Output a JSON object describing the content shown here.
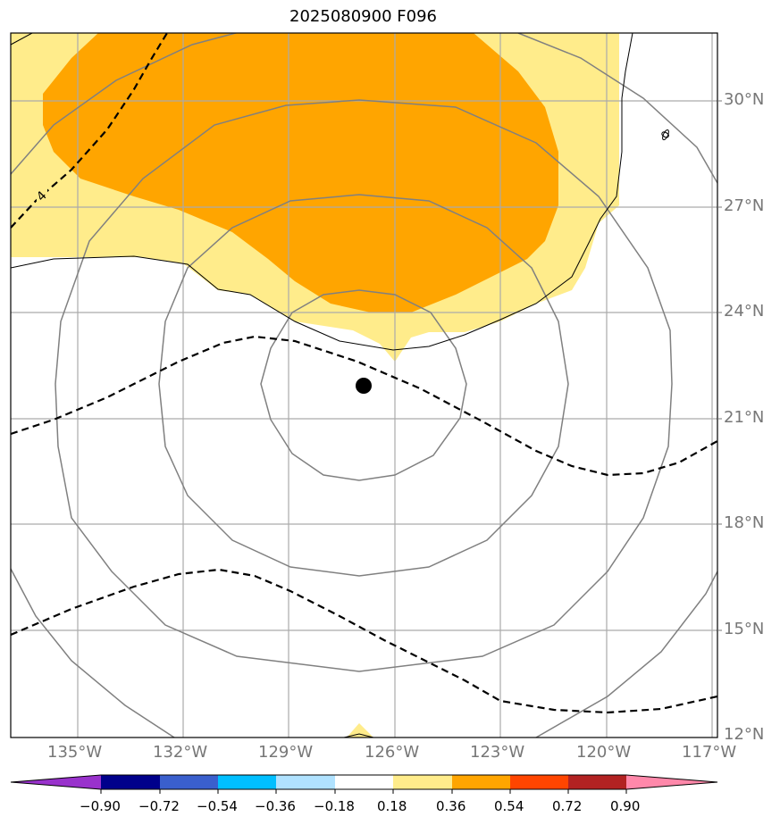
{
  "title": "2025080900 F096",
  "lat_labels": [
    "30°N",
    "27°N",
    "24°N",
    "21°N",
    "18°N",
    "15°N",
    "12°N"
  ],
  "lon_labels": [
    "135°W",
    "132°W",
    "129°W",
    "126°W",
    "123°W",
    "120°W",
    "117°W"
  ],
  "contour_labels": [
    "4",
    "0"
  ],
  "colorbar": {
    "tick_labels": [
      "−0.90",
      "−0.72",
      "−0.54",
      "−0.36",
      "−0.18",
      "0.18",
      "0.36",
      "0.54",
      "0.72",
      "0.90"
    ],
    "colors": [
      "#9932CC",
      "#00008B",
      "#3A5FCD",
      "#00BFFF",
      "#B0E2FF",
      "#FFFFFF",
      "#FFEC8B",
      "#FFA500",
      "#FF4500",
      "#B22222",
      "#FF88AA"
    ]
  },
  "map": {
    "lon_range": [
      -137,
      -117
    ],
    "lat_range": [
      12,
      32
    ],
    "center_marker": {
      "lon": -127,
      "lat": 22
    },
    "fill_colors": {
      "low": "#FFEC8B",
      "mid": "#FFA500"
    },
    "gridline_color": "#aaaaaa"
  }
}
